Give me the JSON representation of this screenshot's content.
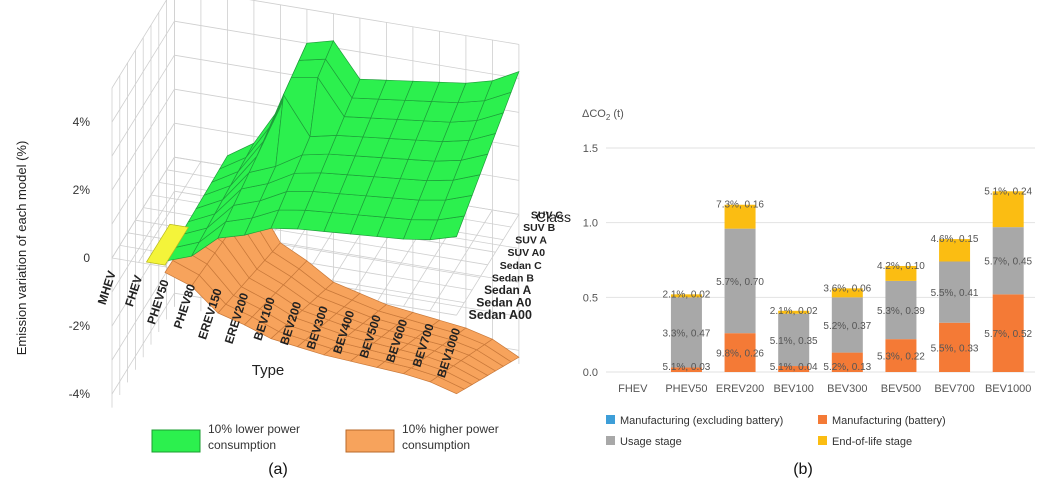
{
  "panel_a": {
    "caption": "(a)",
    "z_axis_label": "Emission variation of each model (%)",
    "x_axis_label": "Type",
    "y_axis_label": "Class",
    "z_ticks": [
      "4%",
      "2%",
      "0",
      "-2%",
      "-4%"
    ],
    "legend": [
      {
        "line1": "10% lower power",
        "line2": "consumption",
        "color": "#2cf04e"
      },
      {
        "line1": "10% higher power",
        "line2": "consumption",
        "color": "#f7a35c"
      }
    ]
  },
  "panel_b": {
    "caption": "(b)",
    "legend": [
      {
        "label": "Manufacturing (excluding battery)",
        "color": "#3d9ed8"
      },
      {
        "label": "Manufacturing (battery)",
        "color": "#f47a36"
      },
      {
        "label": "Usage stage",
        "color": "#a8a8a8"
      },
      {
        "label": "End-of-life stage",
        "color": "#fbbd12"
      }
    ]
  },
  "chart_data": [
    {
      "type": "surface",
      "title": "",
      "x_label": "Type",
      "y_label": "Class",
      "z_label": "Emission variation of each model (%)",
      "x_categories": [
        "MHEV",
        "FHEV",
        "PHEV50",
        "PHEV80",
        "EREV150",
        "EREV200",
        "BEV100",
        "BEV200",
        "BEV300",
        "BEV400",
        "BEV500",
        "BEV600",
        "BEV700",
        "BEV1000"
      ],
      "y_categories": [
        "Sedan A00",
        "Sedan A0",
        "Sedan A",
        "Sedan B",
        "Sedan C",
        "SUV A0",
        "SUV A",
        "SUV B",
        "SUV C"
      ],
      "z_range": [
        -4,
        4
      ],
      "series": [
        {
          "name": "10% lower power consumption",
          "color": "#2cf04e"
        },
        {
          "name": "10% higher power consumption",
          "color": "#f7a35c"
        }
      ]
    },
    {
      "type": "bar",
      "stacked": true,
      "title": "",
      "ylabel": "ΔCO2 (t)",
      "ylim": [
        0,
        1.5
      ],
      "y_ticks": [
        "0.0",
        "0.5",
        "1.0",
        "1.5"
      ],
      "categories": [
        "FHEV",
        "PHEV50",
        "EREV200",
        "BEV100",
        "BEV300",
        "BEV500",
        "BEV700",
        "BEV1000"
      ],
      "series": [
        {
          "name": "Manufacturing (excluding battery)",
          "color": "#3d9ed8",
          "values": [
            0,
            0,
            0,
            0,
            0,
            0,
            0,
            0
          ]
        },
        {
          "name": "Manufacturing (battery)",
          "color": "#f47a36",
          "values": [
            0,
            0.03,
            0.26,
            0.04,
            0.13,
            0.22,
            0.33,
            0.52
          ]
        },
        {
          "name": "Usage stage",
          "color": "#a8a8a8",
          "values": [
            0,
            0.47,
            0.7,
            0.35,
            0.37,
            0.39,
            0.41,
            0.45
          ]
        },
        {
          "name": "End-of-life stage",
          "color": "#fbbd12",
          "values": [
            0,
            0.02,
            0.16,
            0.02,
            0.06,
            0.1,
            0.15,
            0.24
          ]
        }
      ],
      "data_labels": [
        [],
        [
          "5.1%, 0.03",
          "3.3%, 0.47",
          "2.1%, 0.02"
        ],
        [
          "9.8%, 0.26",
          "5.7%, 0.70",
          "7.3%, 0.16"
        ],
        [
          "5.1%, 0.04",
          "5.1%, 0.35",
          "2.1%, 0.02"
        ],
        [
          "5.2%, 0.13",
          "5.2%, 0.37",
          "3.6%, 0.06"
        ],
        [
          "5.3%, 0.22",
          "5.3%, 0.39",
          "4.2%, 0.10"
        ],
        [
          "5.5%, 0.33",
          "5.5%, 0.41",
          "4.6%, 0.15"
        ],
        [
          "5.7%, 0.52",
          "5.7%, 0.45",
          "5.1%, 0.24"
        ]
      ]
    }
  ]
}
